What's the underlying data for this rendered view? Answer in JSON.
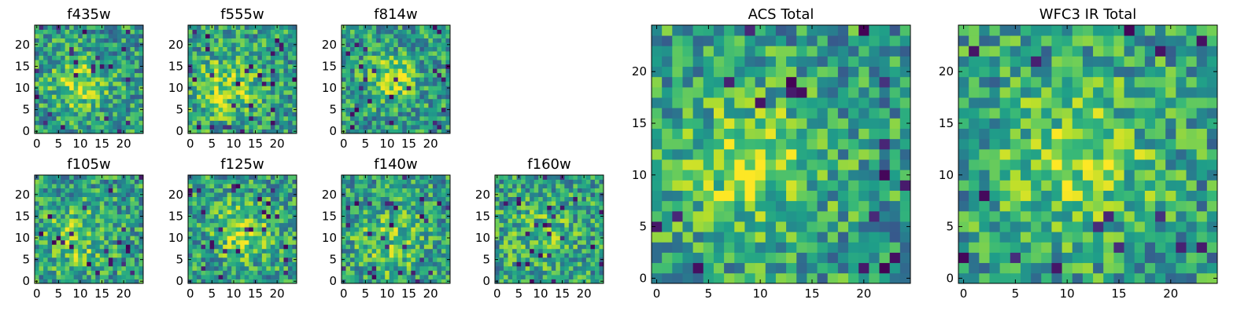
{
  "chart_data": [
    {
      "type": "heatmap",
      "title": "f435w",
      "grid_size": 25,
      "colormap": "viridis",
      "xticks": [
        "0",
        "5",
        "10",
        "15",
        "20"
      ],
      "yticks": [
        "0",
        "5",
        "10",
        "15",
        "20"
      ],
      "xlim": [
        0,
        25
      ],
      "ylim": [
        0,
        25
      ],
      "grid": false
    },
    {
      "type": "heatmap",
      "title": "f555w",
      "grid_size": 25,
      "colormap": "viridis",
      "xticks": [
        "0",
        "5",
        "10",
        "15",
        "20"
      ],
      "yticks": [
        "0",
        "5",
        "10",
        "15",
        "20"
      ],
      "xlim": [
        0,
        25
      ],
      "ylim": [
        0,
        25
      ],
      "grid": false
    },
    {
      "type": "heatmap",
      "title": "f814w",
      "grid_size": 25,
      "colormap": "viridis",
      "xticks": [
        "0",
        "5",
        "10",
        "15",
        "20"
      ],
      "yticks": [
        "0",
        "5",
        "10",
        "15",
        "20"
      ],
      "xlim": [
        0,
        25
      ],
      "ylim": [
        0,
        25
      ],
      "grid": false
    },
    {
      "type": "heatmap",
      "title": "f105w",
      "grid_size": 25,
      "colormap": "viridis",
      "xticks": [
        "0",
        "5",
        "10",
        "15",
        "20"
      ],
      "yticks": [
        "0",
        "5",
        "10",
        "15",
        "20"
      ],
      "xlim": [
        0,
        25
      ],
      "ylim": [
        0,
        25
      ],
      "grid": false
    },
    {
      "type": "heatmap",
      "title": "f125w",
      "grid_size": 25,
      "colormap": "viridis",
      "xticks": [
        "0",
        "5",
        "10",
        "15",
        "20"
      ],
      "yticks": [
        "0",
        "5",
        "10",
        "15",
        "20"
      ],
      "xlim": [
        0,
        25
      ],
      "ylim": [
        0,
        25
      ],
      "grid": false
    },
    {
      "type": "heatmap",
      "title": "f140w",
      "grid_size": 25,
      "colormap": "viridis",
      "xticks": [
        "0",
        "5",
        "10",
        "15",
        "20"
      ],
      "yticks": [
        "0",
        "5",
        "10",
        "15",
        "20"
      ],
      "xlim": [
        0,
        25
      ],
      "ylim": [
        0,
        25
      ],
      "grid": false
    },
    {
      "type": "heatmap",
      "title": "f160w",
      "grid_size": 25,
      "colormap": "viridis",
      "xticks": [
        "0",
        "5",
        "10",
        "15",
        "20"
      ],
      "yticks": [
        "0",
        "5",
        "10",
        "15",
        "20"
      ],
      "xlim": [
        0,
        25
      ],
      "ylim": [
        0,
        25
      ],
      "grid": false
    },
    {
      "type": "heatmap",
      "title": "ACS Total",
      "grid_size": 25,
      "colormap": "viridis",
      "xticks": [
        "0",
        "5",
        "10",
        "15",
        "20"
      ],
      "yticks": [
        "0",
        "5",
        "10",
        "15",
        "20"
      ],
      "xlim": [
        0,
        25
      ],
      "ylim": [
        0,
        25
      ],
      "grid": false
    },
    {
      "type": "heatmap",
      "title": "WFC3 IR Total",
      "grid_size": 25,
      "colormap": "viridis",
      "xticks": [
        "0",
        "5",
        "10",
        "15",
        "20"
      ],
      "yticks": [
        "0",
        "5",
        "10",
        "15",
        "20"
      ],
      "xlim": [
        0,
        25
      ],
      "ylim": [
        0,
        25
      ],
      "grid": false
    }
  ]
}
